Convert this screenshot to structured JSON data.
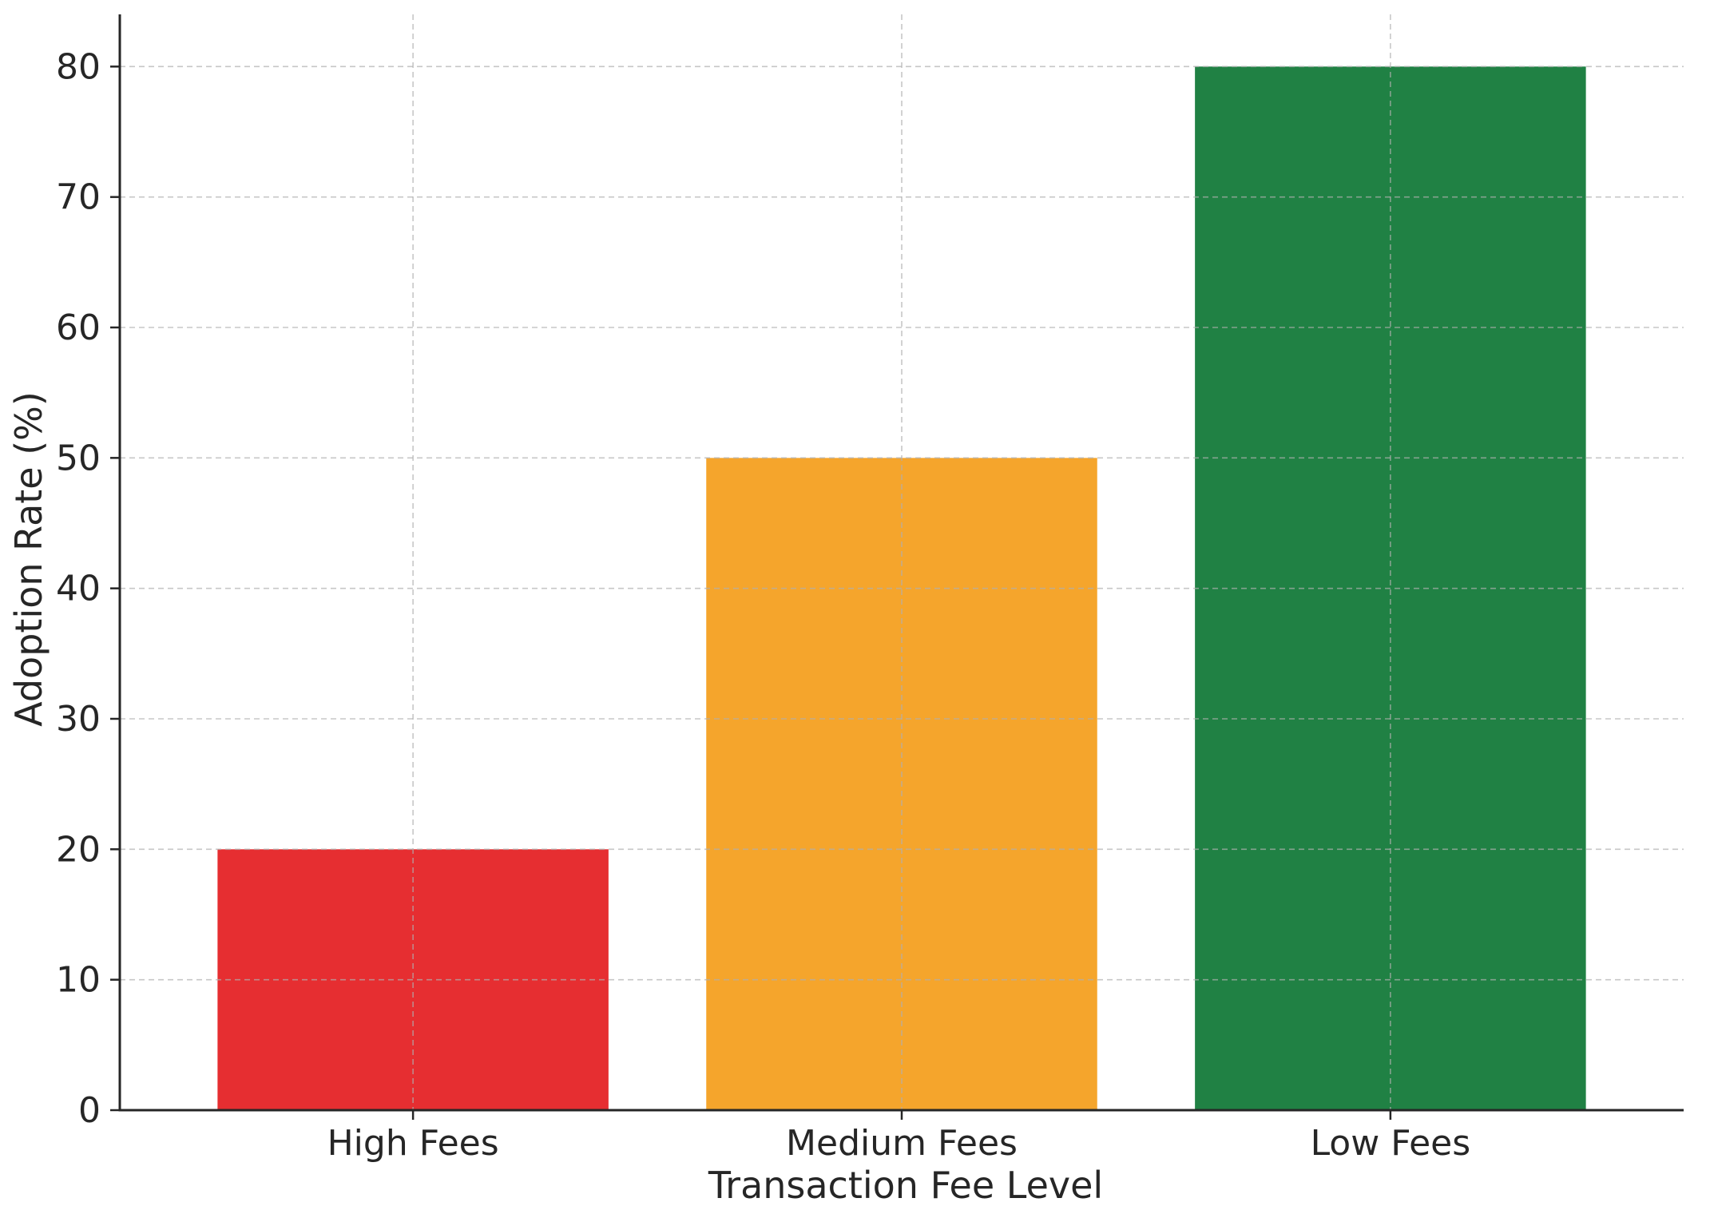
{
  "chart_data": {
    "type": "bar",
    "title": "",
    "xlabel": "Transaction Fee Level",
    "ylabel": "Adoption Rate (%)",
    "categories": [
      "High Fees",
      "Medium Fees",
      "Low Fees"
    ],
    "values": [
      20,
      50,
      80
    ],
    "colors": [
      "#e62e31",
      "#f5a52c",
      "#208144"
    ],
    "ylim": [
      0,
      84
    ],
    "yticks": [
      0,
      10,
      20,
      30,
      40,
      50,
      60,
      70,
      80
    ],
    "grid": true,
    "grid_style": "dashed",
    "legend": "none"
  }
}
